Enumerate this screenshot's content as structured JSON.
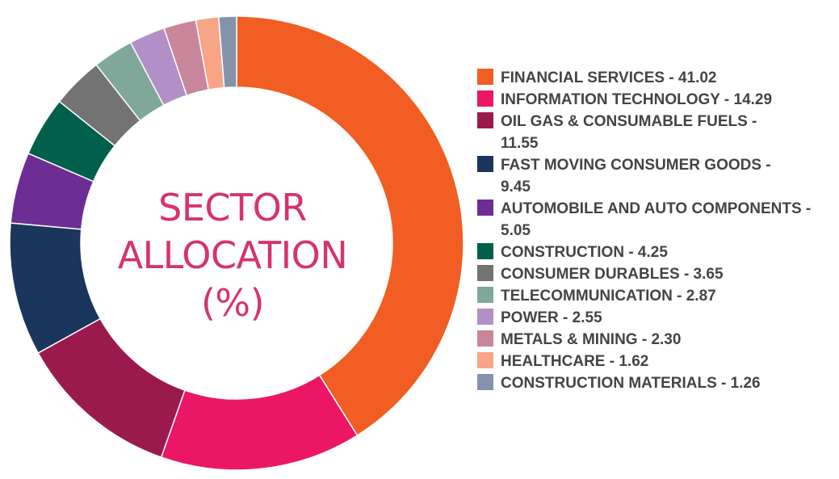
{
  "chart_data": {
    "type": "pie",
    "variant": "donut",
    "title_lines": [
      "SECTOR",
      "ALLOCATION",
      "(%)"
    ],
    "legend_position": "right",
    "slices": [
      {
        "label": "FINANCIAL SERVICES - 41.02",
        "value": 41.02,
        "color": "#f15d22"
      },
      {
        "label": "INFORMATION TECHNOLOGY - 14.29",
        "value": 14.29,
        "color": "#ec1764"
      },
      {
        "label": "OIL GAS & CONSUMABLE FUELS - 11.55",
        "value": 11.55,
        "color": "#9a1a4d"
      },
      {
        "label": "FAST MOVING CONSUMER GOODS - 9.45",
        "value": 9.45,
        "color": "#1a365d"
      },
      {
        "label": "AUTOMOBILE AND AUTO COMPONENTS - 5.05",
        "value": 5.05,
        "color": "#6c2d94"
      },
      {
        "label": "CONSTRUCTION - 4.25",
        "value": 4.25,
        "color": "#00604b"
      },
      {
        "label": "CONSUMER DURABLES - 3.65",
        "value": 3.65,
        "color": "#737373"
      },
      {
        "label": "TELECOMMUNICATION - 2.87",
        "value": 2.87,
        "color": "#7fa79a"
      },
      {
        "label": "POWER - 2.55",
        "value": 2.55,
        "color": "#b28fc6"
      },
      {
        "label": "METALS & MINING - 2.30",
        "value": 2.3,
        "color": "#c9869a"
      },
      {
        "label": "HEALTHCARE - 1.62",
        "value": 1.62,
        "color": "#f8a487"
      },
      {
        "label": "CONSTRUCTION MATERIALS - 1.26",
        "value": 1.26,
        "color": "#8493ab"
      }
    ]
  }
}
